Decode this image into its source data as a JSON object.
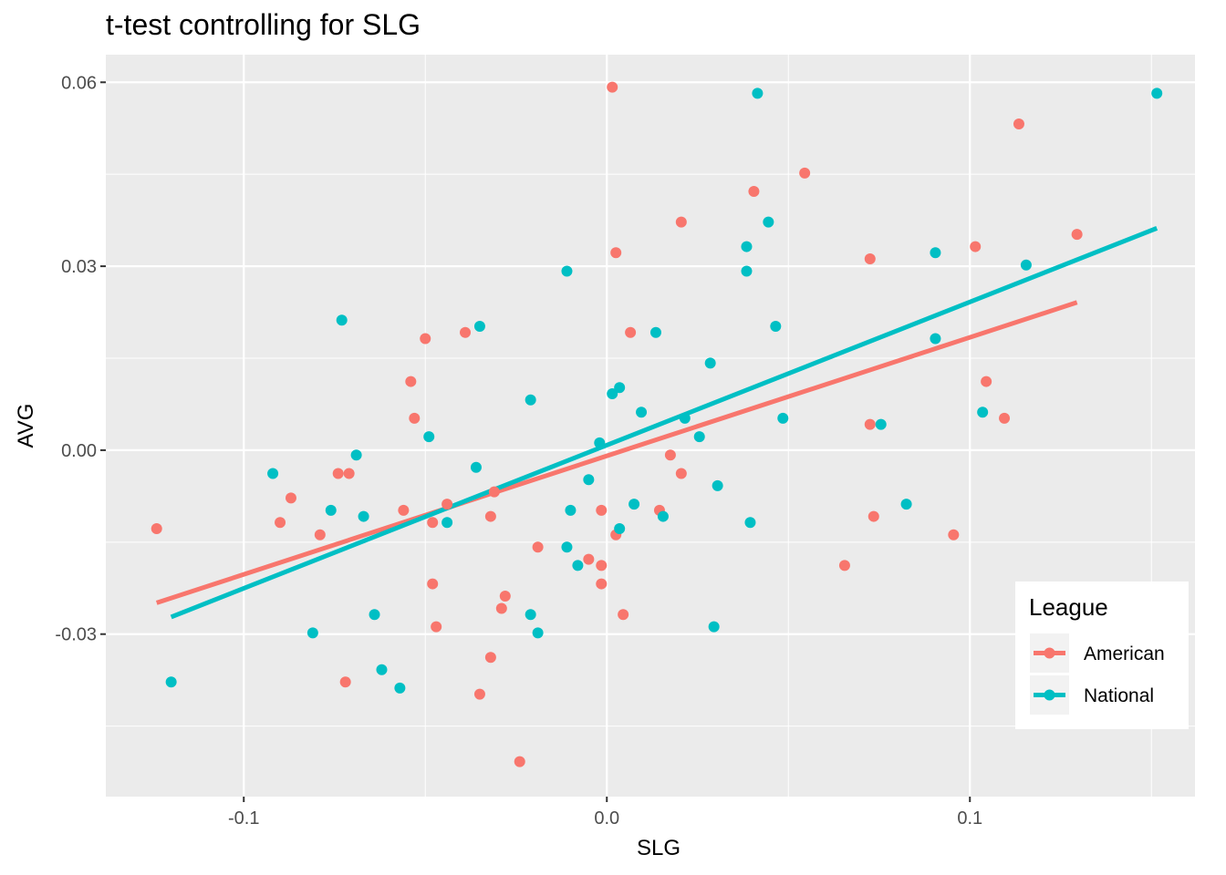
{
  "chart_data": {
    "type": "scatter",
    "title": "t-test controlling for SLG",
    "xlabel": "SLG",
    "ylabel": "AVG",
    "xlim": [
      -0.138,
      0.162
    ],
    "ylim": [
      -0.0565,
      0.0645
    ],
    "x_ticks": [
      -0.1,
      0.0,
      0.1
    ],
    "x_tick_labels": [
      "-0.1",
      "0.0",
      "0.1"
    ],
    "y_ticks": [
      -0.03,
      0.0,
      0.03,
      0.06
    ],
    "y_tick_labels": [
      "-0.03",
      "0.00",
      "0.03",
      "0.06"
    ],
    "grid": true,
    "legend": {
      "title": "League",
      "position": "bottom-right inside",
      "entries": [
        "American",
        "National"
      ]
    },
    "series": [
      {
        "name": "American",
        "color": "#F8766D",
        "points": [
          [
            -0.124,
            -0.0128
          ],
          [
            -0.09,
            -0.0118
          ],
          [
            -0.087,
            -0.0078
          ],
          [
            -0.079,
            -0.0138
          ],
          [
            -0.074,
            -0.0038
          ],
          [
            -0.072,
            -0.0378
          ],
          [
            -0.071,
            -0.0038
          ],
          [
            -0.056,
            -0.0098
          ],
          [
            -0.054,
            0.0112
          ],
          [
            -0.053,
            0.0052
          ],
          [
            -0.05,
            0.0182
          ],
          [
            -0.048,
            -0.0118
          ],
          [
            -0.048,
            -0.0218
          ],
          [
            -0.047,
            -0.0288
          ],
          [
            -0.044,
            -0.0088
          ],
          [
            -0.039,
            0.0192
          ],
          [
            -0.035,
            -0.0398
          ],
          [
            -0.032,
            -0.0108
          ],
          [
            -0.032,
            -0.0338
          ],
          [
            -0.031,
            -0.0068
          ],
          [
            -0.029,
            -0.0258
          ],
          [
            -0.028,
            -0.0238
          ],
          [
            -0.024,
            -0.0508
          ],
          [
            -0.019,
            -0.0158
          ],
          [
            -0.005,
            -0.0178
          ],
          [
            -0.0015,
            -0.0098
          ],
          [
            -0.0015,
            -0.0188
          ],
          [
            -0.0015,
            -0.0218
          ],
          [
            0.0015,
            0.0592
          ],
          [
            0.0025,
            0.0322
          ],
          [
            0.0025,
            -0.0138
          ],
          [
            0.0045,
            -0.0268
          ],
          [
            0.0065,
            0.0192
          ],
          [
            0.0145,
            -0.0098
          ],
          [
            0.0175,
            -0.0008
          ],
          [
            0.0205,
            0.0372
          ],
          [
            0.0205,
            -0.0038
          ],
          [
            0.0405,
            0.0422
          ],
          [
            0.0545,
            0.0452
          ],
          [
            0.0655,
            -0.0188
          ],
          [
            0.0725,
            0.0312
          ],
          [
            0.0725,
            0.0042
          ],
          [
            0.0735,
            -0.0108
          ],
          [
            0.0955,
            -0.0138
          ],
          [
            0.1015,
            0.0332
          ],
          [
            0.1045,
            0.0112
          ],
          [
            0.1095,
            0.0052
          ],
          [
            0.1135,
            0.0532
          ],
          [
            0.1295,
            0.0352
          ]
        ],
        "fit": {
          "x": [
            -0.124,
            0.1295
          ],
          "y": [
            -0.0249,
            0.0241
          ]
        }
      },
      {
        "name": "National",
        "color": "#00BFC4",
        "points": [
          [
            -0.12,
            -0.0378
          ],
          [
            -0.092,
            -0.0038
          ],
          [
            -0.081,
            -0.0298
          ],
          [
            -0.076,
            -0.0098
          ],
          [
            -0.073,
            0.0212
          ],
          [
            -0.069,
            -0.0008
          ],
          [
            -0.067,
            -0.0108
          ],
          [
            -0.064,
            -0.0268
          ],
          [
            -0.062,
            -0.0358
          ],
          [
            -0.057,
            -0.0388
          ],
          [
            -0.049,
            0.0022
          ],
          [
            -0.044,
            -0.0118
          ],
          [
            -0.036,
            -0.0028
          ],
          [
            -0.035,
            0.0202
          ],
          [
            -0.021,
            0.0082
          ],
          [
            -0.021,
            -0.0268
          ],
          [
            -0.019,
            -0.0298
          ],
          [
            -0.011,
            0.0292
          ],
          [
            -0.011,
            -0.0158
          ],
          [
            -0.01,
            -0.0098
          ],
          [
            -0.008,
            -0.0188
          ],
          [
            -0.005,
            -0.0048
          ],
          [
            -0.002,
            0.0012
          ],
          [
            0.0015,
            0.0092
          ],
          [
            0.0035,
            0.0102
          ],
          [
            0.0035,
            -0.0128
          ],
          [
            0.0075,
            -0.0088
          ],
          [
            0.0095,
            0.0062
          ],
          [
            0.0135,
            0.0192
          ],
          [
            0.0155,
            -0.0108
          ],
          [
            0.0215,
            0.0052
          ],
          [
            0.0255,
            0.0022
          ],
          [
            0.0285,
            0.0142
          ],
          [
            0.0295,
            -0.0288
          ],
          [
            0.0305,
            -0.0058
          ],
          [
            0.0385,
            0.0332
          ],
          [
            0.0385,
            0.0292
          ],
          [
            0.0395,
            -0.0118
          ],
          [
            0.0415,
            0.0582
          ],
          [
            0.0445,
            0.0372
          ],
          [
            0.0465,
            0.0202
          ],
          [
            0.0485,
            0.0052
          ],
          [
            0.0755,
            0.0042
          ],
          [
            0.0825,
            -0.0088
          ],
          [
            0.0905,
            0.0322
          ],
          [
            0.0905,
            0.0182
          ],
          [
            0.1035,
            0.0062
          ],
          [
            0.1155,
            0.0302
          ],
          [
            0.1515,
            0.0582
          ]
        ],
        "fit": {
          "x": [
            -0.12,
            0.1515
          ],
          "y": [
            -0.0272,
            0.0362
          ]
        }
      }
    ]
  }
}
